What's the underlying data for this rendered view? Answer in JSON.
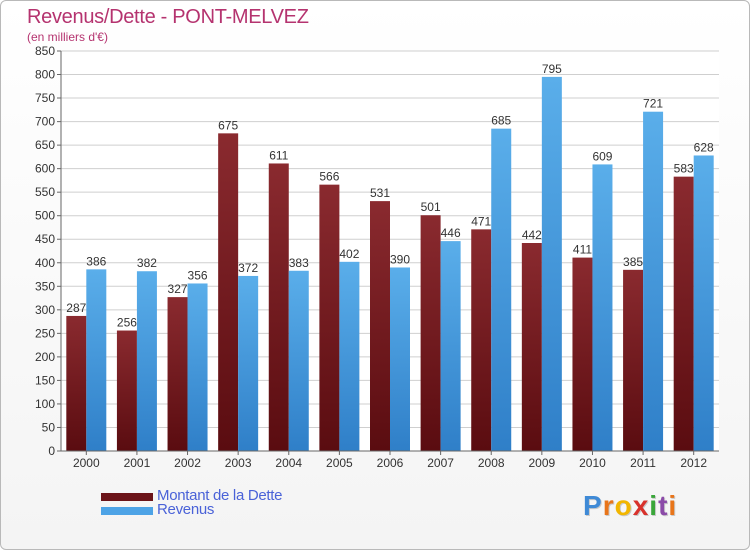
{
  "header": {
    "title": "Revenus/Dette - PONT-MELVEZ",
    "subtitle": "(en milliers d'€)"
  },
  "logo": {
    "letters": [
      "P",
      "r",
      "o",
      "x",
      "i",
      "t",
      "i"
    ],
    "colors": [
      "#3f8ad6",
      "#e8751a",
      "#f2b600",
      "#d8322c",
      "#3aa63a",
      "#8b4ba8",
      "#e8751a"
    ]
  },
  "chart_data": {
    "type": "bar",
    "categories": [
      "2000",
      "2001",
      "2002",
      "2003",
      "2004",
      "2005",
      "2006",
      "2007",
      "2008",
      "2009",
      "2010",
      "2011",
      "2012"
    ],
    "series": [
      {
        "name": "Montant de la Dette",
        "values": [
          287,
          256,
          327,
          675,
          611,
          566,
          531,
          501,
          471,
          442,
          411,
          385,
          583
        ],
        "color": "#7d2227"
      },
      {
        "name": "Revenus",
        "values": [
          386,
          382,
          356,
          372,
          383,
          402,
          390,
          446,
          685,
          795,
          609,
          721,
          628
        ],
        "color": "#4da3e6"
      }
    ],
    "ylim": [
      0,
      850
    ],
    "yticks": [
      0,
      50,
      100,
      150,
      200,
      250,
      300,
      350,
      400,
      450,
      500,
      550,
      600,
      650,
      700,
      750,
      800,
      850
    ],
    "grid": true,
    "legend": "bottom-left"
  }
}
